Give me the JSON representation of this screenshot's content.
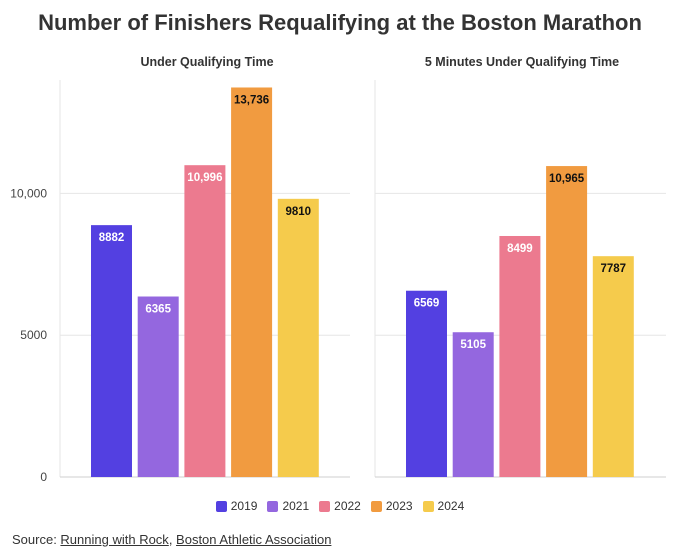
{
  "title": "Number of Finishers Requalifying at the Boston Marathon",
  "chart_data": [
    {
      "type": "bar",
      "title": "Under Qualifying Time",
      "categories": [
        "2019",
        "2021",
        "2022",
        "2023",
        "2024"
      ],
      "values": [
        8882,
        6365,
        10996,
        13736,
        9810
      ],
      "value_labels": [
        "8882",
        "6365",
        "10,996",
        "13,736",
        "9810"
      ],
      "ylim": [
        0,
        14000
      ],
      "yticks": [
        0,
        5000,
        10000
      ],
      "ytick_labels": [
        "0",
        "5000",
        "10,000"
      ],
      "grid": true
    },
    {
      "type": "bar",
      "title": "5 Minutes Under Qualifying Time",
      "categories": [
        "2019",
        "2021",
        "2022",
        "2023",
        "2024"
      ],
      "values": [
        6569,
        5105,
        8499,
        10965,
        7787
      ],
      "value_labels": [
        "6569",
        "5105",
        "8499",
        "10,965",
        "7787"
      ],
      "ylim": [
        0,
        14000
      ],
      "grid": true
    }
  ],
  "colors": [
    "#5340e1",
    "#9467df",
    "#ec7a8f",
    "#f19b40",
    "#f5cb4c"
  ],
  "label_colors": [
    "#ffffff",
    "#ffffff",
    "#ffffff",
    "#111111",
    "#111111"
  ],
  "legend": [
    "2019",
    "2021",
    "2022",
    "2023",
    "2024"
  ],
  "source": {
    "prefix": "Source: ",
    "link1": "Running with Rock",
    "separator": ", ",
    "link2": "Boston Athletic Association"
  }
}
